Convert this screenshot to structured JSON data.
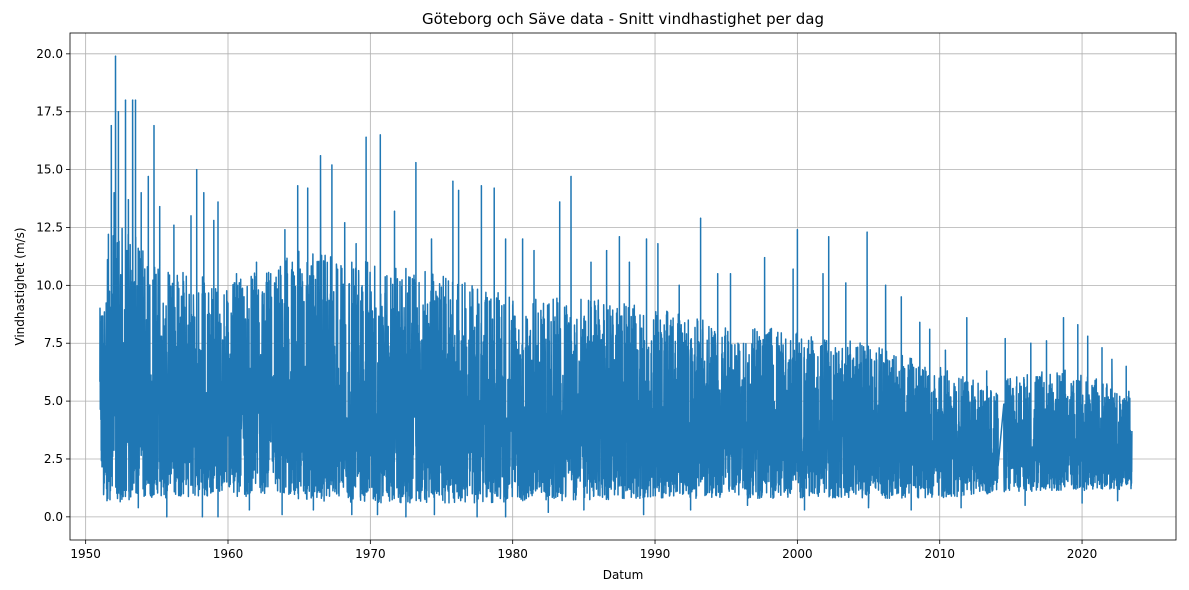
{
  "chart_data": {
    "type": "line",
    "title": "Göteborg och Säve data - Snitt vindhastighet per dag",
    "xlabel": "Datum",
    "ylabel": "Vindhastighet (m/s)",
    "x_range": [
      1948.9,
      2026.6
    ],
    "ylim": [
      -1.0,
      20.9
    ],
    "x_ticks": [
      1950,
      1960,
      1970,
      1980,
      1990,
      2000,
      2010,
      2020
    ],
    "x_tick_labels": [
      "1950",
      "1960",
      "1970",
      "1980",
      "1990",
      "2000",
      "2010",
      "2020"
    ],
    "y_ticks": [
      0.0,
      2.5,
      5.0,
      7.5,
      10.0,
      12.5,
      15.0,
      17.5,
      20.0
    ],
    "y_tick_labels": [
      "0.0",
      "2.5",
      "5.0",
      "7.5",
      "10.0",
      "12.5",
      "15.0",
      "17.5",
      "20.0"
    ],
    "grid": true,
    "line_color": "#1f77b4",
    "series": [
      {
        "x_start": 1951.0,
        "x_end": 2023.5,
        "gap": [
          2014.1,
          2014.5
        ],
        "daily_envelope": {
          "x": [
            1951.0,
            1952.0,
            1953.0,
            1955.0,
            1958.0,
            1960.0,
            1965.0,
            1970.0,
            1975.0,
            1980.0,
            1985.0,
            1990.0,
            1995.0,
            2000.0,
            2005.0,
            2010.0,
            2014.0,
            2014.6,
            2018.0,
            2023.5
          ],
          "upper": [
            9.0,
            13.0,
            12.5,
            11.0,
            10.5,
            10.0,
            11.5,
            11.0,
            10.5,
            9.5,
            9.5,
            9.0,
            8.5,
            8.0,
            7.5,
            6.5,
            5.5,
            6.0,
            6.5,
            5.5
          ],
          "lower": [
            1.0,
            0.6,
            0.7,
            0.8,
            0.9,
            0.9,
            0.7,
            0.6,
            0.6,
            0.6,
            0.7,
            0.8,
            0.8,
            0.8,
            0.8,
            0.8,
            1.0,
            1.1,
            1.1,
            1.2
          ],
          "mean": [
            3.8,
            4.5,
            4.6,
            4.4,
            4.3,
            4.2,
            4.3,
            4.2,
            4.1,
            3.9,
            3.9,
            3.8,
            3.7,
            3.6,
            3.5,
            3.1,
            2.8,
            3.2,
            3.1,
            2.9
          ]
        },
        "peaks": [
          {
            "x": 1951.3,
            "y": 7.5
          },
          {
            "x": 1951.6,
            "y": 12.2
          },
          {
            "x": 1951.8,
            "y": 16.9
          },
          {
            "x": 1952.0,
            "y": 14.0
          },
          {
            "x": 1952.1,
            "y": 19.9
          },
          {
            "x": 1952.3,
            "y": 17.5
          },
          {
            "x": 1952.8,
            "y": 18.0
          },
          {
            "x": 1953.0,
            "y": 13.7
          },
          {
            "x": 1953.3,
            "y": 18.0
          },
          {
            "x": 1953.5,
            "y": 18.0
          },
          {
            "x": 1953.9,
            "y": 14.0
          },
          {
            "x": 1954.4,
            "y": 14.7
          },
          {
            "x": 1954.8,
            "y": 16.9
          },
          {
            "x": 1955.2,
            "y": 13.4
          },
          {
            "x": 1956.2,
            "y": 12.6
          },
          {
            "x": 1957.4,
            "y": 13.0
          },
          {
            "x": 1957.8,
            "y": 15.0
          },
          {
            "x": 1958.3,
            "y": 14.0
          },
          {
            "x": 1959.0,
            "y": 12.8
          },
          {
            "x": 1959.3,
            "y": 13.6
          },
          {
            "x": 1960.6,
            "y": 10.5
          },
          {
            "x": 1962.0,
            "y": 11.0
          },
          {
            "x": 1963.0,
            "y": 10.5
          },
          {
            "x": 1964.0,
            "y": 12.4
          },
          {
            "x": 1964.9,
            "y": 14.3
          },
          {
            "x": 1965.6,
            "y": 14.2
          },
          {
            "x": 1966.5,
            "y": 15.6
          },
          {
            "x": 1967.3,
            "y": 15.2
          },
          {
            "x": 1968.2,
            "y": 12.7
          },
          {
            "x": 1969.0,
            "y": 11.8
          },
          {
            "x": 1969.7,
            "y": 16.4
          },
          {
            "x": 1970.7,
            "y": 16.5
          },
          {
            "x": 1971.7,
            "y": 13.2
          },
          {
            "x": 1973.2,
            "y": 15.3
          },
          {
            "x": 1974.3,
            "y": 12.0
          },
          {
            "x": 1975.8,
            "y": 14.5
          },
          {
            "x": 1976.2,
            "y": 14.1
          },
          {
            "x": 1977.8,
            "y": 14.3
          },
          {
            "x": 1978.7,
            "y": 14.2
          },
          {
            "x": 1979.5,
            "y": 12.0
          },
          {
            "x": 1980.7,
            "y": 12.0
          },
          {
            "x": 1981.5,
            "y": 11.5
          },
          {
            "x": 1983.3,
            "y": 13.6
          },
          {
            "x": 1984.1,
            "y": 14.7
          },
          {
            "x": 1985.5,
            "y": 11.0
          },
          {
            "x": 1986.6,
            "y": 11.5
          },
          {
            "x": 1987.5,
            "y": 12.1
          },
          {
            "x": 1988.2,
            "y": 11.0
          },
          {
            "x": 1989.4,
            "y": 12.0
          },
          {
            "x": 1990.2,
            "y": 11.8
          },
          {
            "x": 1991.7,
            "y": 10.0
          },
          {
            "x": 1993.2,
            "y": 12.9
          },
          {
            "x": 1994.4,
            "y": 10.5
          },
          {
            "x": 1995.3,
            "y": 10.5
          },
          {
            "x": 1997.7,
            "y": 11.2
          },
          {
            "x": 1999.7,
            "y": 10.7
          },
          {
            "x": 2000.0,
            "y": 12.4
          },
          {
            "x": 2001.8,
            "y": 10.5
          },
          {
            "x": 2002.2,
            "y": 12.1
          },
          {
            "x": 2003.4,
            "y": 10.1
          },
          {
            "x": 2004.9,
            "y": 12.3
          },
          {
            "x": 2006.2,
            "y": 10.0
          },
          {
            "x": 2007.3,
            "y": 9.5
          },
          {
            "x": 2008.6,
            "y": 8.4
          },
          {
            "x": 2009.3,
            "y": 8.1
          },
          {
            "x": 2010.4,
            "y": 7.2
          },
          {
            "x": 2011.9,
            "y": 8.6
          },
          {
            "x": 2013.3,
            "y": 6.3
          },
          {
            "x": 2014.6,
            "y": 7.7
          },
          {
            "x": 2016.4,
            "y": 7.5
          },
          {
            "x": 2017.5,
            "y": 7.6
          },
          {
            "x": 2018.7,
            "y": 8.6
          },
          {
            "x": 2019.7,
            "y": 8.3
          },
          {
            "x": 2020.4,
            "y": 7.8
          },
          {
            "x": 2021.4,
            "y": 7.3
          },
          {
            "x": 2022.1,
            "y": 6.8
          },
          {
            "x": 2023.1,
            "y": 6.5
          }
        ],
        "troughs": [
          {
            "x": 1951.5,
            "y": 0.7
          },
          {
            "x": 1953.7,
            "y": 0.4
          },
          {
            "x": 1955.7,
            "y": 0.0
          },
          {
            "x": 1958.2,
            "y": 0.0
          },
          {
            "x": 1959.3,
            "y": 0.0
          },
          {
            "x": 1961.5,
            "y": 0.3
          },
          {
            "x": 1963.8,
            "y": 0.1
          },
          {
            "x": 1966.0,
            "y": 0.3
          },
          {
            "x": 1968.7,
            "y": 0.1
          },
          {
            "x": 1970.5,
            "y": 0.1
          },
          {
            "x": 1972.5,
            "y": 0.0
          },
          {
            "x": 1974.5,
            "y": 0.1
          },
          {
            "x": 1977.5,
            "y": 0.0
          },
          {
            "x": 1979.5,
            "y": 0.0
          },
          {
            "x": 1982.5,
            "y": 0.2
          },
          {
            "x": 1985.0,
            "y": 0.3
          },
          {
            "x": 1989.2,
            "y": 0.1
          },
          {
            "x": 1992.5,
            "y": 0.3
          },
          {
            "x": 1996.5,
            "y": 0.5
          },
          {
            "x": 2000.5,
            "y": 0.3
          },
          {
            "x": 2005.0,
            "y": 0.4
          },
          {
            "x": 2008.0,
            "y": 0.3
          },
          {
            "x": 2011.5,
            "y": 0.4
          },
          {
            "x": 2016.0,
            "y": 0.5
          },
          {
            "x": 2020.0,
            "y": 0.6
          },
          {
            "x": 2022.5,
            "y": 0.7
          }
        ]
      }
    ]
  }
}
